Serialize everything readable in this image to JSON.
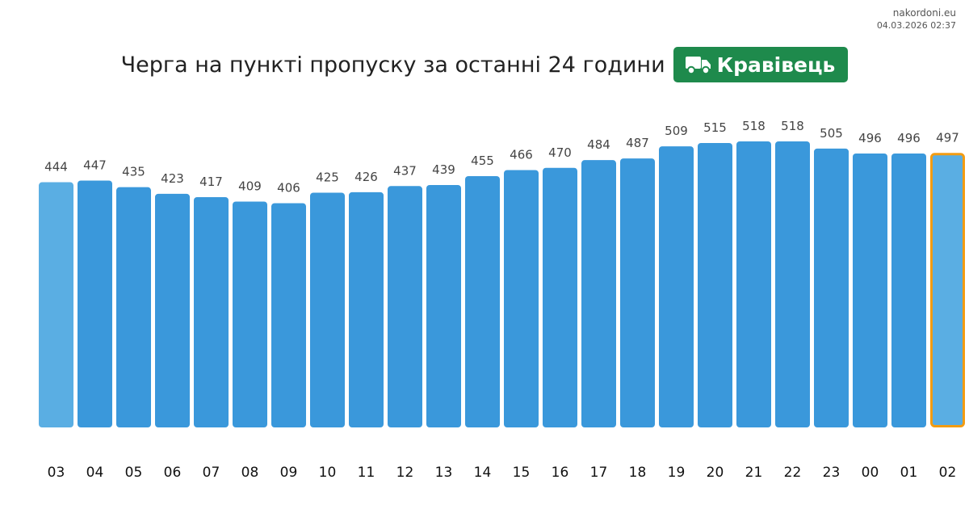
{
  "source": {
    "site": "nakordoni.eu",
    "timestamp": "04.03.2026 02:37"
  },
  "header": {
    "title": "Черга на пункті пропуску за останні 24 години",
    "badge_label": "Кравівець"
  },
  "colors": {
    "bar": "#3a98db",
    "bar_first": "#5aaee3",
    "bar_current": "#5aaee3",
    "highlight": "#f39c12",
    "badge_bg": "#1e8a4c"
  },
  "icons": {
    "badge_icon": "truck-icon"
  },
  "chart_data": {
    "type": "bar",
    "categories": [
      "03",
      "04",
      "05",
      "06",
      "07",
      "08",
      "09",
      "10",
      "11",
      "12",
      "13",
      "14",
      "15",
      "16",
      "17",
      "18",
      "19",
      "20",
      "21",
      "22",
      "23",
      "00",
      "01",
      "02"
    ],
    "values": [
      444,
      447,
      435,
      423,
      417,
      409,
      406,
      425,
      426,
      437,
      439,
      455,
      466,
      470,
      484,
      487,
      509,
      515,
      518,
      518,
      505,
      496,
      496,
      497
    ],
    "highlighted_category": "02",
    "grid": false,
    "legend": "none"
  }
}
